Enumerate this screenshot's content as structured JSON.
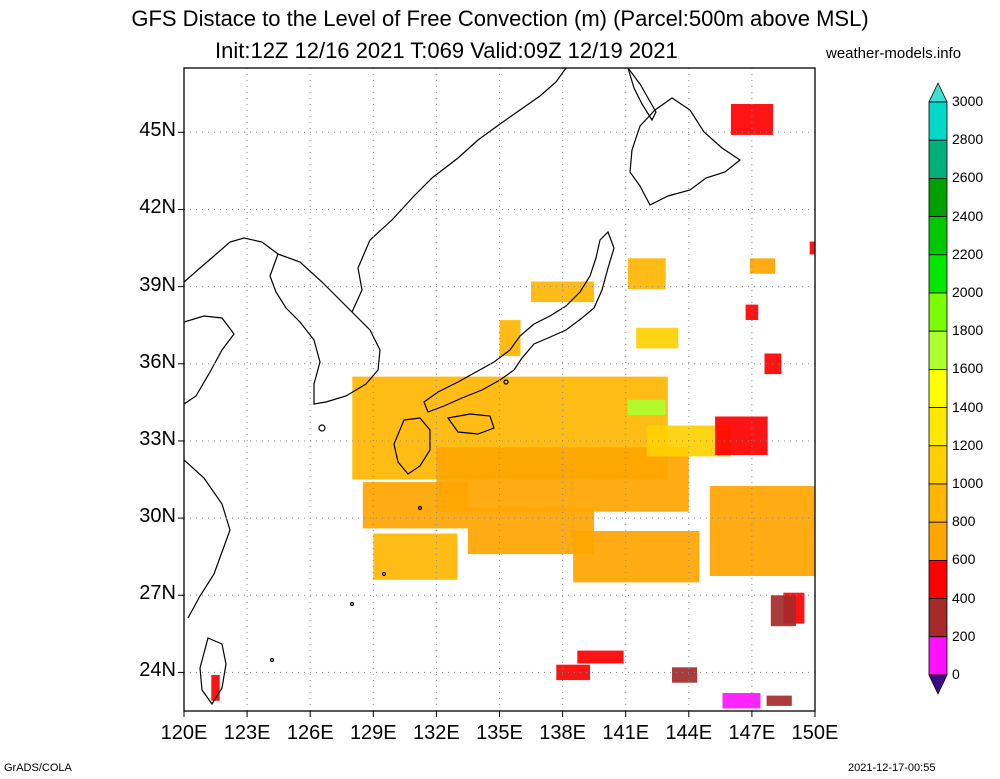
{
  "title": {
    "line1": "GFS Distace to the Level of Free Convection (m) (Parcel:500m above MSL)",
    "line2": "Init:12Z 12/16 2021 T:069 Valid:09Z 12/19 2021",
    "site": "weather-models.info"
  },
  "footer": {
    "left": "GrADS/COLA",
    "right": "2021-12-17-00:55"
  },
  "map": {
    "lon_range": [
      120,
      150
    ],
    "lat_range": [
      22.5,
      47.5
    ],
    "lat_labels": [
      "24N",
      "27N",
      "30N",
      "33N",
      "36N",
      "39N",
      "42N",
      "45N"
    ],
    "lon_labels": [
      "120E",
      "123E",
      "126E",
      "129E",
      "132E",
      "135E",
      "138E",
      "141E",
      "144E",
      "147E",
      "150E"
    ]
  },
  "colorbar": {
    "labels": [
      "0",
      "200",
      "400",
      "600",
      "800",
      "1000",
      "1200",
      "1400",
      "1600",
      "1800",
      "2000",
      "2200",
      "2400",
      "2600",
      "2800",
      "3000"
    ],
    "colors": [
      "#3d0a82",
      "#ff10ff",
      "#a52a2a",
      "#ff0000",
      "#ffa500",
      "#ffb600",
      "#ffd000",
      "#ffe800",
      "#ffff00",
      "#adff2f",
      "#7cfc00",
      "#00e600",
      "#00c800",
      "#00a000",
      "#00b07a",
      "#00d8c8",
      "#00ffee"
    ],
    "over_color": "#40e0d0",
    "under_color": "#2a0050"
  }
}
